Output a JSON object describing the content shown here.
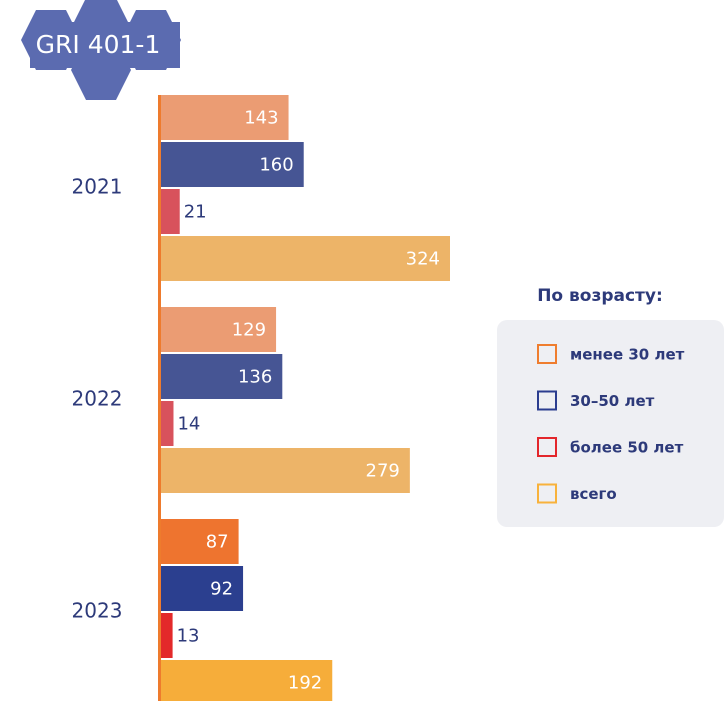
{
  "chart_data": {
    "type": "hbar",
    "badge": "GRI 401-1",
    "categories": [
      "2021",
      "2022",
      "2023"
    ],
    "legend_title": "По возрасту:",
    "series": [
      {
        "name": "менее 30 лет",
        "color": "#ef7d2e",
        "colors": [
          "#eb9c73",
          "#eb9c73",
          "#ee742f"
        ],
        "values": [
          143,
          129,
          87
        ]
      },
      {
        "name": "30–50 лет",
        "color": "#2b3d8f",
        "colors": [
          "#465594",
          "#465594",
          "#2b3f8f"
        ],
        "values": [
          160,
          136,
          92
        ]
      },
      {
        "name": "более 50 лет",
        "color": "#e3262b",
        "colors": [
          "#d8525c",
          "#d8525c",
          "#e3292a"
        ],
        "values": [
          21,
          14,
          13
        ]
      },
      {
        "name": "всего",
        "color": "#f8b23b",
        "colors": [
          "#edb468",
          "#edb468",
          "#f6ad3a"
        ],
        "values": [
          324,
          279,
          192
        ]
      }
    ]
  }
}
